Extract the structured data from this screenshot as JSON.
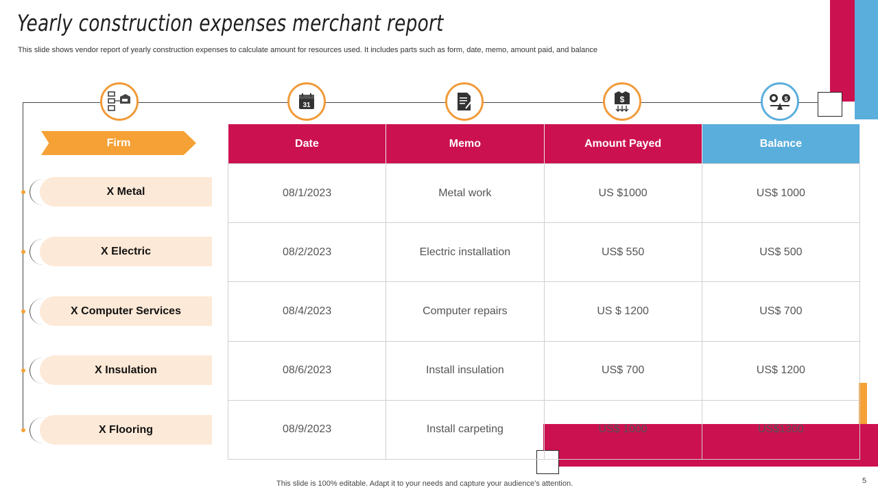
{
  "title": "Yearly construction expenses merchant report",
  "subtitle": "This slide shows vendor report of yearly   construction expenses to calculate amount for resources used. It includes parts such as form, date, memo, amount paid, and balance",
  "firm_header": "Firm",
  "columns": [
    "Date",
    "Memo",
    "Amount Payed",
    "Balance"
  ],
  "icons": [
    "firm-icon",
    "calendar-icon",
    "memo-icon",
    "money-icon",
    "balance-icon"
  ],
  "calendar_day": "31",
  "rows": [
    {
      "firm": "X Metal",
      "date": "08/1/2023",
      "memo": "Metal work",
      "amount": "US $1000",
      "balance": "US$ 1000"
    },
    {
      "firm": "X Electric",
      "date": "08/2/2023",
      "memo": "Electric installation",
      "amount": "US$ 550",
      "balance": "US$ 500"
    },
    {
      "firm": "X Computer Services",
      "date": "08/4/2023",
      "memo": "Computer repairs",
      "amount": "US $ 1200",
      "balance": "US$ 700"
    },
    {
      "firm": "X Insulation",
      "date": "08/6/2023",
      "memo": "Install  insulation",
      "amount": "US$ 700",
      "balance": "US$ 1200"
    },
    {
      "firm": "X Flooring",
      "date": "08/9/2023",
      "memo": "Install  carpeting",
      "amount": "US$ 1000",
      "balance": "US$1300"
    }
  ],
  "footer": "This slide is 100% editable. Adapt it to your needs and capture your audience’s attention.",
  "page_number": "5",
  "colors": {
    "crimson": "#cc1150",
    "blue": "#5aaedc",
    "orange": "#f5a136",
    "peach": "#fde9d7"
  }
}
